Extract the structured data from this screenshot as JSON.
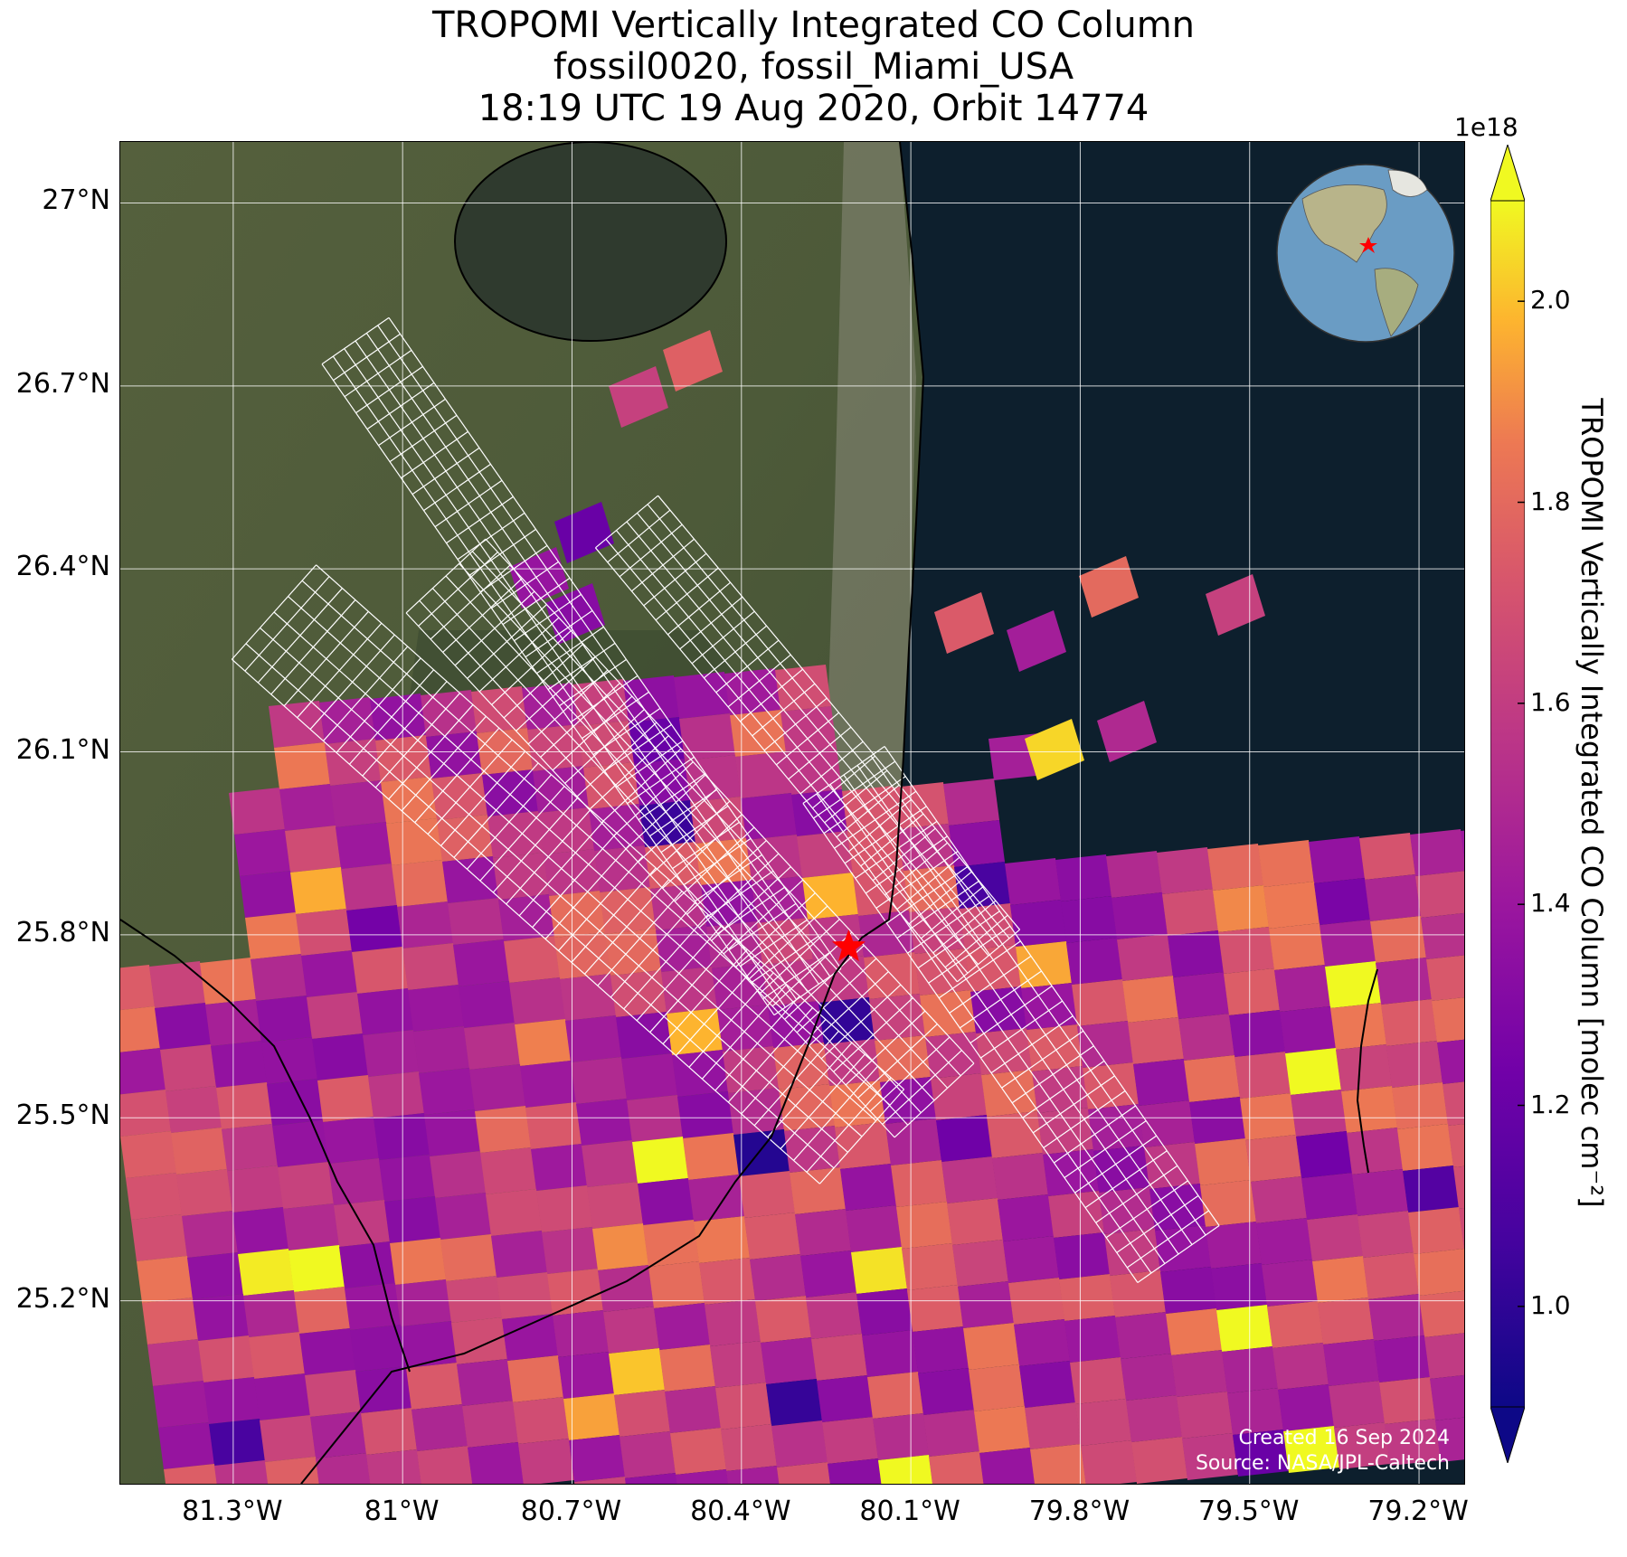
{
  "title": {
    "line1": "TROPOMI Vertically Integrated CO Column",
    "line2": "fossil0020, fossil_Miami_USA",
    "line3": "18:19 UTC 19 Aug 2020, Orbit 14774"
  },
  "axes": {
    "lat_labels": [
      "27°N",
      "26.7°N",
      "26.4°N",
      "26.1°N",
      "25.8°N",
      "25.5°N",
      "25.2°N"
    ],
    "lon_labels": [
      "81.3°W",
      "81°W",
      "80.7°W",
      "80.4°W",
      "80.1°W",
      "79.8°W",
      "79.5°W",
      "79.2°W"
    ],
    "lat_values": [
      27.0,
      26.7,
      26.4,
      26.1,
      25.8,
      25.5,
      25.2
    ],
    "lon_values": [
      -81.3,
      -81.0,
      -80.7,
      -80.4,
      -80.1,
      -79.8,
      -79.5,
      -79.2
    ],
    "lat_range": [
      24.9,
      27.1
    ],
    "lon_range": [
      -81.5,
      -79.12
    ],
    "grid": true
  },
  "colorbar": {
    "exponent": "1e18",
    "ticks": [
      "1.0",
      "1.2",
      "1.4",
      "1.6",
      "1.8",
      "2.0"
    ],
    "tick_values": [
      1.0,
      1.2,
      1.4,
      1.6,
      1.8,
      2.0
    ],
    "range": [
      0.9,
      2.1
    ],
    "colormap": "plasma",
    "label": "TROPOMI Vertically Integrated CO Column [molec cm⁻²]",
    "extend": "both"
  },
  "marker": {
    "name": "fossil_Miami_USA",
    "lat": 25.78,
    "lon": -80.21,
    "color": "#ff0000",
    "shape": "star-icon"
  },
  "credit": {
    "line1": "Created 16 Sep 2024",
    "line2": "Source: NASA/JPL-Caltech"
  },
  "colors": {
    "ocean": "#0d1f2d",
    "land": "#4a5a3a",
    "grid": "#ffffff",
    "coast": "#000000"
  }
}
